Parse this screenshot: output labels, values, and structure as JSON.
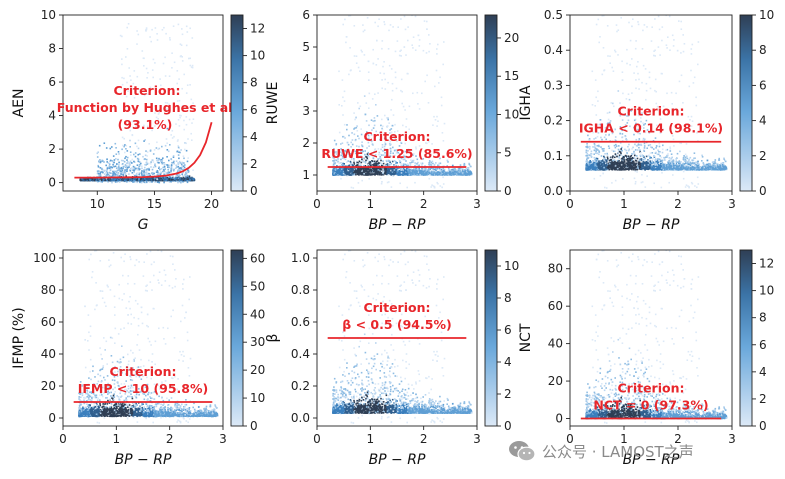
{
  "watermark": {
    "text": "公众号 · LAMOST之声",
    "icon": "wechat-icon"
  },
  "colors": {
    "criterion": "#e8262b",
    "cmap_low": "#dce9f7",
    "cmap_mid": "#3d85c6",
    "cmap_high": "#2f3f55"
  },
  "chart_data": [
    {
      "type": "heatmap",
      "xlabel": "G",
      "ylabel": "AEN",
      "xlim": [
        7,
        21
      ],
      "ylim": [
        -0.5,
        10
      ],
      "xticks": [
        10,
        15,
        20
      ],
      "yticks": [
        0,
        2,
        4,
        6,
        8,
        10
      ],
      "colorbar": {
        "min": 0,
        "max": 13,
        "ticks": [
          0,
          2,
          4,
          6,
          8,
          10,
          12
        ]
      },
      "criterion": {
        "label_line1": "Criterion:",
        "label_line2": "Function by Hughes et al.",
        "label_line3": "(93.1%)",
        "curve": {
          "x": [
            8,
            10,
            12,
            14,
            15,
            16,
            17,
            17.5,
            18,
            18.5,
            19,
            19.5,
            20
          ],
          "y": [
            0.3,
            0.3,
            0.31,
            0.33,
            0.36,
            0.42,
            0.55,
            0.68,
            0.88,
            1.18,
            1.65,
            2.4,
            3.6
          ]
        }
      },
      "density": {
        "x_range": [
          8.5,
          18.5
        ],
        "core_y": 0.15,
        "spread_y": 3.0
      }
    },
    {
      "type": "heatmap",
      "xlabel": "BP − RP",
      "ylabel": "RUWE",
      "xlim": [
        0,
        3
      ],
      "ylim": [
        0.5,
        6
      ],
      "xticks": [
        0,
        1,
        2,
        3
      ],
      "yticks": [
        1,
        2,
        3,
        4,
        5,
        6
      ],
      "colorbar": {
        "min": 0,
        "max": 23,
        "ticks": [
          0,
          5,
          10,
          15,
          20
        ]
      },
      "criterion": {
        "label_line1": "Criterion:",
        "label_line2": "RUWE < 1.25 (85.6%)",
        "line_y": 1.25,
        "line_x": [
          0.2,
          2.8
        ]
      },
      "density": {
        "x_range": [
          0.3,
          2.9
        ],
        "core_y": 1.0,
        "spread_y": 5.0
      }
    },
    {
      "type": "heatmap",
      "xlabel": "BP − RP",
      "ylabel": "IGHA",
      "xlim": [
        0,
        3
      ],
      "ylim": [
        0,
        0.5
      ],
      "xticks": [
        0,
        1,
        2,
        3
      ],
      "yticks": [
        0.0,
        0.1,
        0.2,
        0.3,
        0.4,
        0.5
      ],
      "colorbar": {
        "min": 0,
        "max": 10,
        "ticks": [
          0,
          2,
          4,
          6,
          8,
          10
        ]
      },
      "criterion": {
        "label_line1": "Criterion:",
        "label_line2": "IGHA < 0.14 (98.1%)",
        "line_y": 0.14,
        "line_x": [
          0.2,
          2.8
        ]
      },
      "density": {
        "x_range": [
          0.3,
          2.9
        ],
        "core_y": 0.06,
        "spread_y": 0.3
      }
    },
    {
      "type": "heatmap",
      "xlabel": "BP − RP",
      "ylabel": "IFMP (%)",
      "xlim": [
        0,
        3
      ],
      "ylim": [
        -5,
        105
      ],
      "xticks": [
        0,
        1,
        2,
        3
      ],
      "yticks": [
        0,
        20,
        40,
        60,
        80,
        100
      ],
      "colorbar": {
        "min": 0,
        "max": 63,
        "ticks": [
          0,
          10,
          20,
          30,
          40,
          50,
          60
        ]
      },
      "criterion": {
        "label_line1": "Criterion:",
        "label_line2": "IFMP < 10 (95.8%)",
        "line_y": 10,
        "line_x": [
          0.2,
          2.8
        ]
      },
      "density": {
        "x_range": [
          0.3,
          2.9
        ],
        "core_y": 1,
        "spread_y": 100
      }
    },
    {
      "type": "heatmap",
      "xlabel": "BP − RP",
      "ylabel": "β",
      "xlim": [
        0,
        3
      ],
      "ylim": [
        -0.05,
        1.05
      ],
      "xticks": [
        0,
        1,
        2,
        3
      ],
      "yticks": [
        0.0,
        0.2,
        0.4,
        0.6,
        0.8,
        1.0
      ],
      "colorbar": {
        "min": 0,
        "max": 11,
        "ticks": [
          0,
          2,
          4,
          6,
          8,
          10
        ]
      },
      "criterion": {
        "label_line1": "Criterion:",
        "label_line2": "β < 0.5 (94.5%)",
        "line_y": 0.5,
        "line_x": [
          0.2,
          2.8
        ]
      },
      "density": {
        "x_range": [
          0.3,
          2.9
        ],
        "core_y": 0.03,
        "spread_y": 1.0
      }
    },
    {
      "type": "heatmap",
      "xlabel": "BP − RP",
      "ylabel": "NCT",
      "xlim": [
        0,
        3
      ],
      "ylim": [
        -4,
        90
      ],
      "xticks": [
        0,
        1,
        2,
        3
      ],
      "yticks": [
        0,
        20,
        40,
        60,
        80
      ],
      "colorbar": {
        "min": 0,
        "max": 13,
        "ticks": [
          0,
          2,
          4,
          6,
          8,
          10,
          12
        ]
      },
      "criterion": {
        "label_line1": "Criterion:",
        "label_line2": "NCT = 0 (97.3%)",
        "line_y": 0,
        "line_x": [
          0.2,
          2.8
        ]
      },
      "density": {
        "x_range": [
          0.3,
          2.9
        ],
        "core_y": 0,
        "spread_y": 40
      }
    }
  ]
}
